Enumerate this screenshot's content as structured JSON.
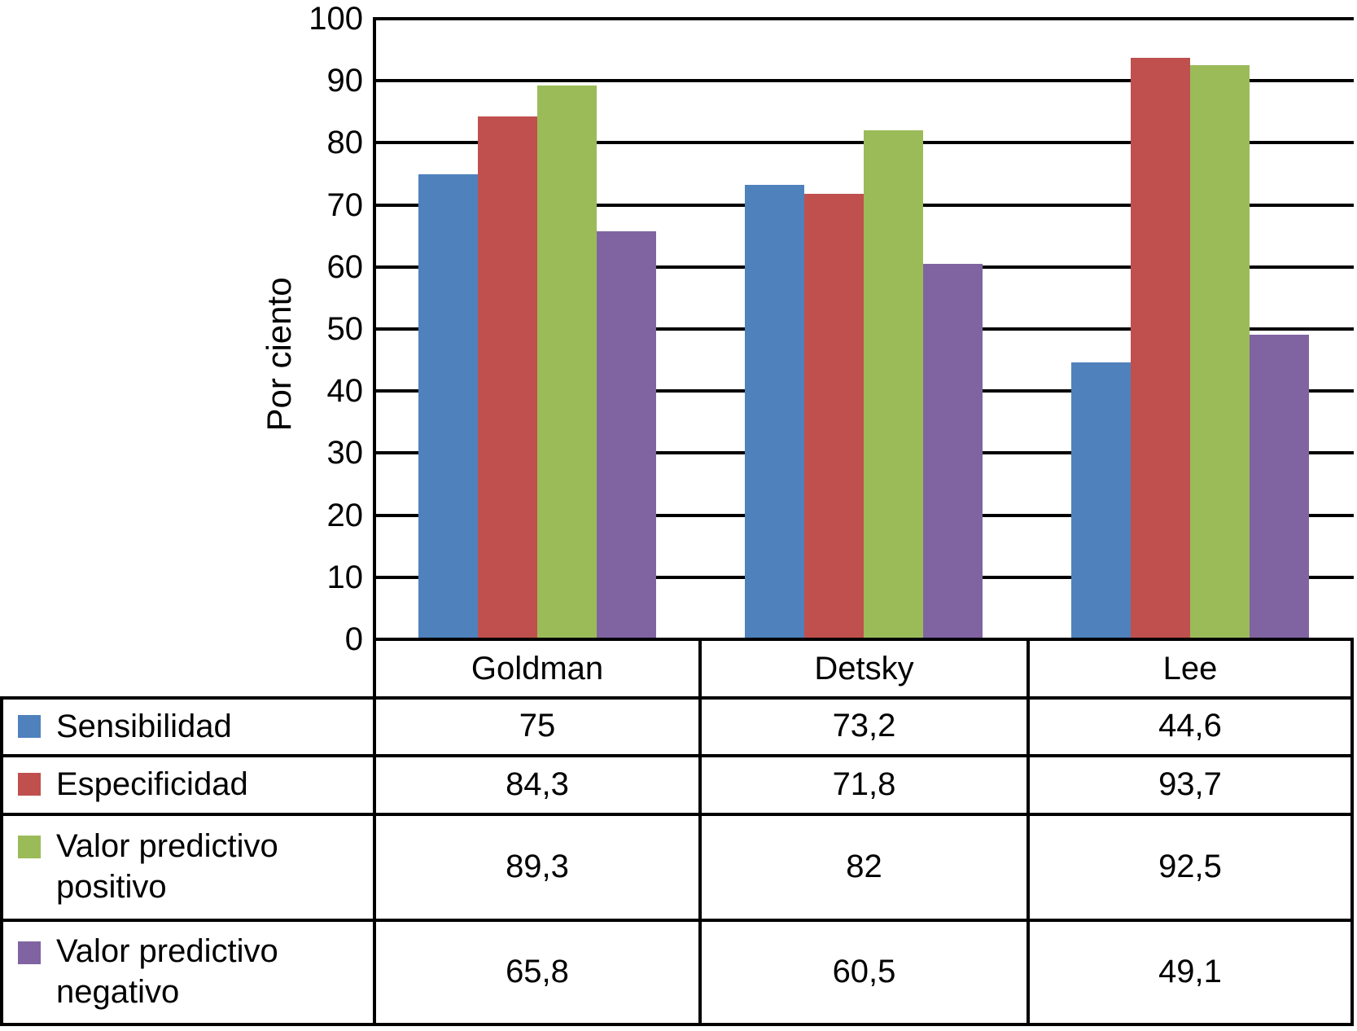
{
  "chart_data": {
    "type": "bar",
    "title": "",
    "ylabel": "Por ciento",
    "xlabel": "",
    "ylim": [
      0,
      100
    ],
    "yticks": [
      0,
      10,
      20,
      30,
      40,
      50,
      60,
      70,
      80,
      90,
      100
    ],
    "grid": true,
    "legend_position": "table-left",
    "value_format": "comma-decimal",
    "categories": [
      "Goldman",
      "Detsky",
      "Lee"
    ],
    "series": [
      {
        "name": "Sensibilidad",
        "color": "#4F81BD",
        "values": [
          75,
          73.2,
          44.6
        ]
      },
      {
        "name": "Especificidad",
        "color": "#C0504D",
        "values": [
          84.3,
          71.8,
          93.7
        ]
      },
      {
        "name": "Valor predictivo positivo",
        "color": "#9BBB59",
        "values": [
          89.3,
          82,
          92.5
        ]
      },
      {
        "name": "Valor predictivo negativo",
        "color": "#8064A2",
        "values": [
          65.8,
          60.5,
          49.1
        ]
      }
    ]
  },
  "table": {
    "column_headers": [
      "Goldman",
      "Detsky",
      "Lee"
    ],
    "rows": [
      {
        "label": "Sensibilidad",
        "values": [
          "75",
          "73,2",
          "44,6"
        ]
      },
      {
        "label": "Especificidad",
        "values": [
          "84,3",
          "71,8",
          "93,7"
        ]
      },
      {
        "label": "Valor predictivo positivo",
        "values": [
          "89,3",
          "82",
          "92,5"
        ]
      },
      {
        "label": "Valor predictivo negativo",
        "values": [
          "65,8",
          "60,5",
          "49,1"
        ]
      }
    ]
  },
  "axis": {
    "y_tick_labels": [
      "0",
      "10",
      "20",
      "30",
      "40",
      "50",
      "60",
      "70",
      "80",
      "90",
      "100"
    ]
  }
}
